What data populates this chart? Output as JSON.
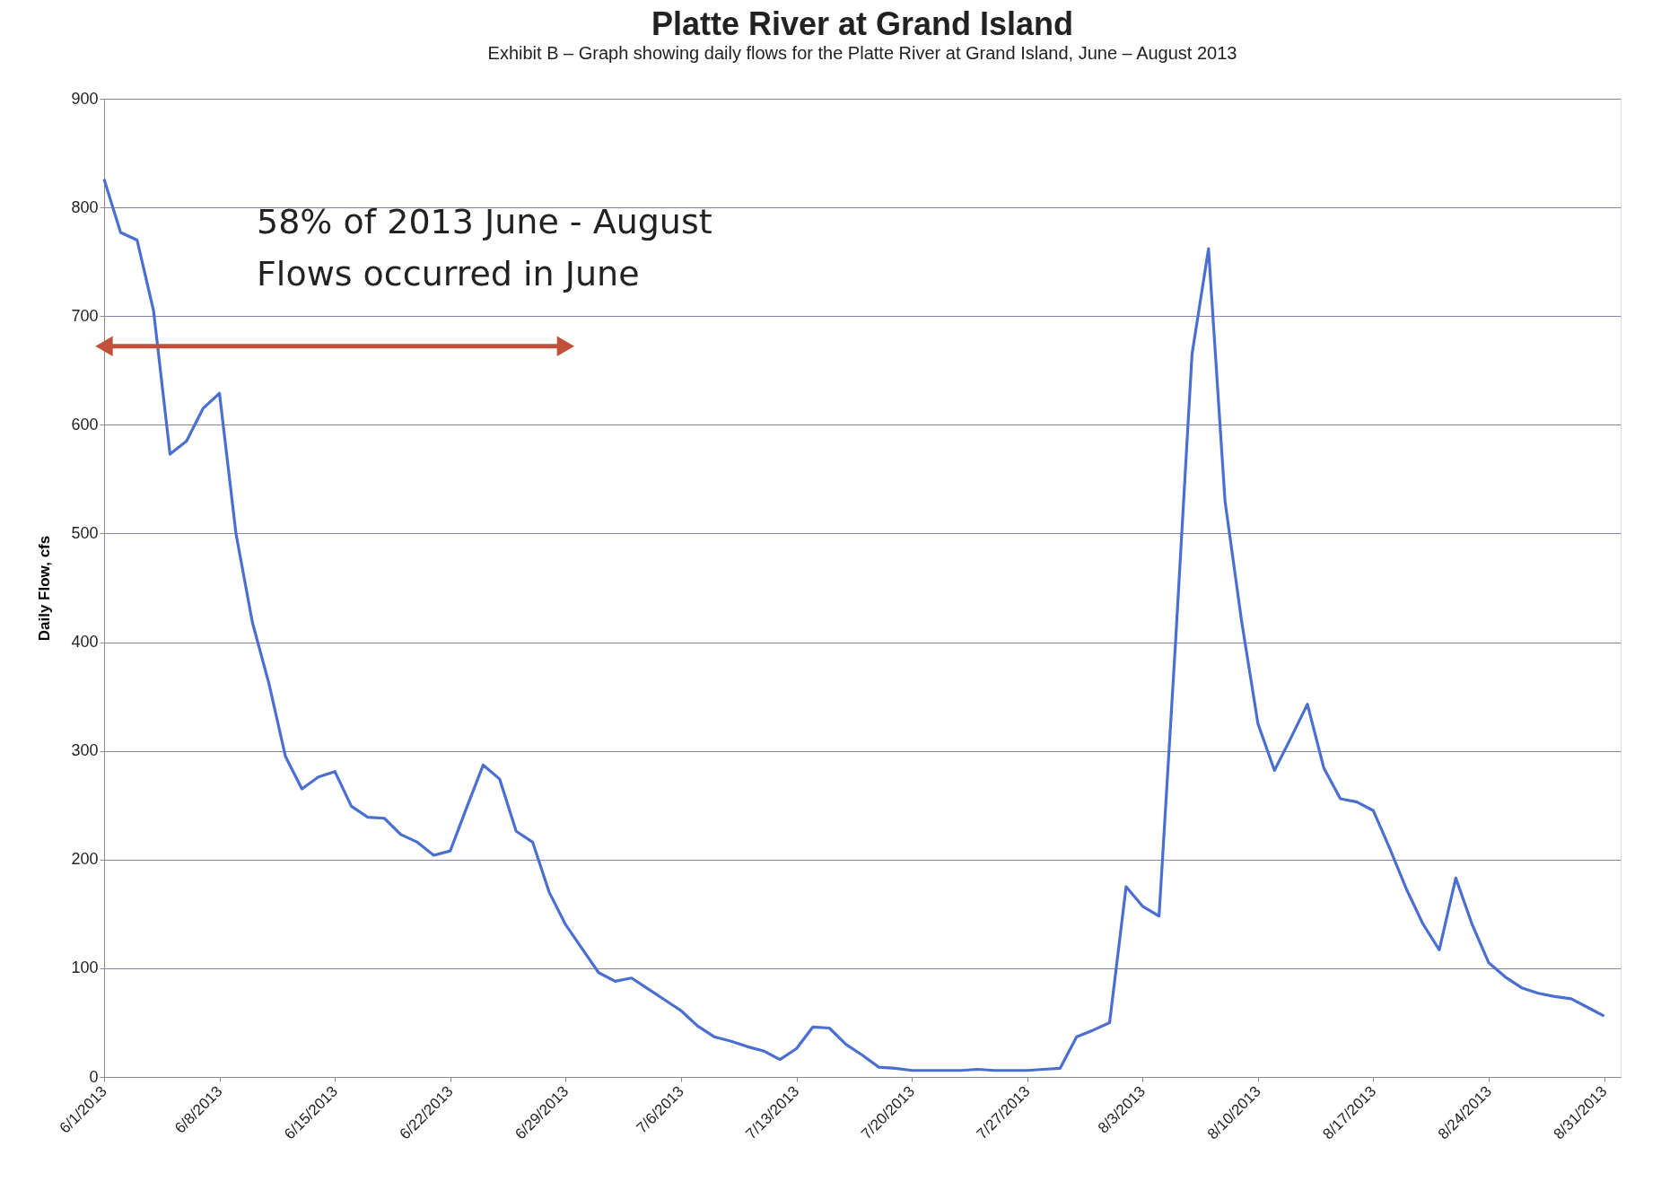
{
  "chart_data": {
    "type": "line",
    "title": "Platte River at Grand Island",
    "ylabel": "Daily Flow, cfs",
    "annotations": [
      "Exhibit B – Graph showing daily flows for the Platte River at Grand Island, June – August 2013",
      "58% of 2013 June - August\nFlows occurred in June"
    ],
    "x": [
      "2013-06-01",
      "2013-06-02",
      "2013-06-03",
      "2013-06-04",
      "2013-06-05",
      "2013-06-06",
      "2013-06-07",
      "2013-06-08",
      "2013-06-09",
      "2013-06-10",
      "2013-06-11",
      "2013-06-12",
      "2013-06-13",
      "2013-06-14",
      "2013-06-15",
      "2013-06-16",
      "2013-06-17",
      "2013-06-18",
      "2013-06-19",
      "2013-06-20",
      "2013-06-21",
      "2013-06-22",
      "2013-06-23",
      "2013-06-24",
      "2013-06-25",
      "2013-06-26",
      "2013-06-27",
      "2013-06-28",
      "2013-06-29",
      "2013-06-30",
      "2013-07-01",
      "2013-07-02",
      "2013-07-03",
      "2013-07-04",
      "2013-07-05",
      "2013-07-06",
      "2013-07-07",
      "2013-07-08",
      "2013-07-09",
      "2013-07-10",
      "2013-07-11",
      "2013-07-12",
      "2013-07-13",
      "2013-07-14",
      "2013-07-15",
      "2013-07-16",
      "2013-07-17",
      "2013-07-18",
      "2013-07-19",
      "2013-07-20",
      "2013-07-21",
      "2013-07-22",
      "2013-07-23",
      "2013-07-24",
      "2013-07-25",
      "2013-07-26",
      "2013-07-27",
      "2013-07-28",
      "2013-07-29",
      "2013-07-30",
      "2013-07-31",
      "2013-08-01",
      "2013-08-02",
      "2013-08-03",
      "2013-08-04",
      "2013-08-05",
      "2013-08-06",
      "2013-08-07",
      "2013-08-08",
      "2013-08-09",
      "2013-08-10",
      "2013-08-11",
      "2013-08-12",
      "2013-08-13",
      "2013-08-14",
      "2013-08-15",
      "2013-08-16",
      "2013-08-17",
      "2013-08-18",
      "2013-08-19",
      "2013-08-20",
      "2013-08-21",
      "2013-08-22",
      "2013-08-23",
      "2013-08-24",
      "2013-08-25",
      "2013-08-26",
      "2013-08-27",
      "2013-08-28",
      "2013-08-29",
      "2013-08-30",
      "2013-08-31"
    ],
    "series": [
      {
        "color": "#4a6fd0",
        "values": [
          826,
          777,
          770,
          705,
          573,
          585,
          615,
          629,
          500,
          418,
          362,
          295,
          265,
          276,
          281,
          249,
          239,
          238,
          223,
          216,
          204,
          208,
          248,
          287,
          274,
          226,
          216,
          170,
          140,
          118,
          96,
          88,
          91,
          81,
          71,
          61,
          47,
          37,
          33,
          28,
          24,
          16,
          26,
          46,
          45,
          30,
          20,
          9,
          8,
          6,
          6,
          6,
          6,
          7,
          6,
          6,
          6,
          7,
          8,
          37,
          43,
          50,
          175,
          157,
          148,
          400,
          665,
          762,
          530,
          420,
          325,
          282,
          312,
          343,
          284,
          256,
          253,
          245,
          210,
          173,
          141,
          117,
          183,
          140,
          105,
          92,
          82,
          77,
          74,
          72,
          64,
          56
        ]
      }
    ],
    "xlim": [
      "2013-06-01",
      "2013-09-01"
    ],
    "xticks": [
      {
        "value": "2013-06-01",
        "label": "6/1/2013"
      },
      {
        "value": "2013-06-08",
        "label": "6/8/2013"
      },
      {
        "value": "2013-06-15",
        "label": "6/15/2013"
      },
      {
        "value": "2013-06-22",
        "label": "6/22/2013"
      },
      {
        "value": "2013-06-29",
        "label": "6/29/2013"
      },
      {
        "value": "2013-07-06",
        "label": "7/6/2013"
      },
      {
        "value": "2013-07-13",
        "label": "7/13/2013"
      },
      {
        "value": "2013-07-20",
        "label": "7/20/2013"
      },
      {
        "value": "2013-07-27",
        "label": "7/27/2013"
      },
      {
        "value": "2013-08-03",
        "label": "8/3/2013"
      },
      {
        "value": "2013-08-10",
        "label": "8/10/2013"
      },
      {
        "value": "2013-08-17",
        "label": "8/17/2013"
      },
      {
        "value": "2013-08-24",
        "label": "8/24/2013"
      },
      {
        "value": "2013-08-31",
        "label": "8/31/2013"
      }
    ],
    "ylim": [
      0,
      900
    ],
    "yticks": [
      0,
      100,
      200,
      300,
      400,
      500,
      600,
      700,
      800,
      900
    ],
    "grid": "y",
    "marker": "none",
    "line_style": "solid"
  }
}
